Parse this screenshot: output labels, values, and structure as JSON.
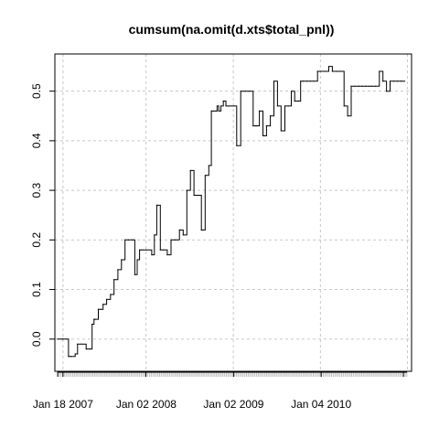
{
  "chart_data": {
    "type": "line",
    "title": "cumsum(na.omit(d.xts$total_pnl))",
    "xlabel": "",
    "ylabel": "",
    "x_tick_labels": [
      "Jan 18 2007",
      "Jan 02 2008",
      "Jan 02 2009",
      "Jan 04 2010"
    ],
    "y_tick_values": [
      0.0,
      0.1,
      0.2,
      0.3,
      0.4,
      0.5
    ],
    "y_tick_labels": [
      "0.0",
      "0.1",
      "0.2",
      "0.3",
      "0.4",
      "0.5"
    ],
    "xlim": [
      "2006-12-15",
      "2011-01-18"
    ],
    "ylim": [
      -0.065,
      0.575
    ],
    "grid": true,
    "series_color": "#000000",
    "grid_color": "#c8c8c8",
    "rug_color": "#bebebe",
    "series": [
      {
        "x": [
          "2006-12-27",
          "2007-01-18",
          "2007-02-10",
          "2007-02-20",
          "2007-03-10",
          "2007-03-20",
          "2007-04-05",
          "2007-04-25",
          "2007-05-10",
          "2007-05-20",
          "2007-05-28",
          "2007-06-01",
          "2007-06-15",
          "2007-06-25",
          "2007-07-05",
          "2007-07-20",
          "2007-08-05",
          "2007-08-20",
          "2007-09-05",
          "2007-09-20",
          "2007-10-05",
          "2007-10-20",
          "2007-11-05",
          "2007-11-15",
          "2007-11-25",
          "2007-12-05",
          "2007-12-15",
          "2008-01-02",
          "2008-01-25",
          "2008-02-05",
          "2008-02-15",
          "2008-03-01",
          "2008-03-15",
          "2008-03-30",
          "2008-04-15",
          "2008-05-01",
          "2008-05-20",
          "2008-06-05",
          "2008-06-20",
          "2008-07-05",
          "2008-07-20",
          "2008-08-05",
          "2008-08-20",
          "2008-09-05",
          "2008-09-20",
          "2008-10-01",
          "2008-10-10",
          "2008-10-20",
          "2008-10-25",
          "2008-11-01",
          "2008-11-10",
          "2008-11-20",
          "2008-12-01",
          "2008-12-10",
          "2008-12-20",
          "2009-01-02",
          "2009-01-15",
          "2009-02-01",
          "2009-02-20",
          "2009-03-10",
          "2009-03-25",
          "2009-04-05",
          "2009-04-10",
          "2009-04-20",
          "2009-05-05",
          "2009-05-20",
          "2009-06-05",
          "2009-06-20",
          "2009-07-05",
          "2009-07-20",
          "2009-08-05",
          "2009-08-20",
          "2009-09-01",
          "2009-09-15",
          "2009-10-01",
          "2009-10-10",
          "2009-10-20",
          "2009-11-05",
          "2009-11-20",
          "2009-12-05",
          "2009-12-20",
          "2010-01-04",
          "2010-01-20",
          "2010-02-05",
          "2010-02-20",
          "2010-03-10",
          "2010-03-25",
          "2010-04-10",
          "2010-04-25",
          "2010-05-10",
          "2010-05-25",
          "2010-06-10",
          "2010-06-25",
          "2010-07-10",
          "2010-07-25",
          "2010-08-05",
          "2010-08-20",
          "2010-09-05",
          "2010-09-20",
          "2010-10-05",
          "2010-10-20",
          "2010-11-05",
          "2010-11-20",
          "2010-12-05",
          "2010-12-20"
        ],
        "y": [
          0.0,
          0.0,
          -0.035,
          -0.035,
          -0.03,
          -0.01,
          -0.01,
          -0.02,
          -0.02,
          0.03,
          0.04,
          0.04,
          0.06,
          0.06,
          0.07,
          0.08,
          0.09,
          0.12,
          0.14,
          0.16,
          0.2,
          0.2,
          0.2,
          0.13,
          0.16,
          0.18,
          0.18,
          0.18,
          0.17,
          0.21,
          0.27,
          0.18,
          0.18,
          0.17,
          0.2,
          0.2,
          0.22,
          0.21,
          0.3,
          0.34,
          0.29,
          0.29,
          0.22,
          0.33,
          0.35,
          0.46,
          0.46,
          0.46,
          0.47,
          0.46,
          0.47,
          0.48,
          0.47,
          0.47,
          0.47,
          0.47,
          0.39,
          0.5,
          0.5,
          0.5,
          0.43,
          0.43,
          0.43,
          0.46,
          0.41,
          0.43,
          0.45,
          0.52,
          0.47,
          0.42,
          0.47,
          0.47,
          0.5,
          0.48,
          0.48,
          0.52,
          0.52,
          0.52,
          0.52,
          0.52,
          0.54,
          0.54,
          0.54,
          0.55,
          0.54,
          0.54,
          0.54,
          0.47,
          0.45,
          0.51,
          0.51,
          0.51,
          0.51,
          0.51,
          0.51,
          0.51,
          0.51,
          0.54,
          0.52,
          0.5,
          0.52,
          0.52,
          0.52,
          0.52,
          0.52
        ]
      }
    ]
  }
}
